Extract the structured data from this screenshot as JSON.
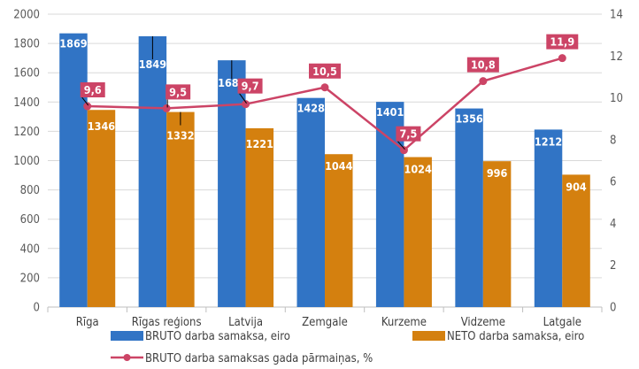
{
  "chart_data": {
    "type": "bar",
    "title": "",
    "xlabel": "",
    "ylabel": "",
    "y2label": "",
    "categories": [
      "Rīga",
      "Rīgas reģions",
      "Latvija",
      "Zemgale",
      "Kurzeme",
      "Vidzeme",
      "Latgale"
    ],
    "ylim": [
      0,
      2000
    ],
    "y2lim": [
      0,
      14
    ],
    "yticks": [
      "0",
      "200",
      "400",
      "600",
      "800",
      "1000",
      "1200",
      "1400",
      "1600",
      "1800",
      "2000"
    ],
    "y2ticks": [
      "0",
      "2",
      "4",
      "6",
      "8",
      "10",
      "12",
      "14"
    ],
    "grid": true,
    "legend_position": "bottom",
    "series": [
      {
        "name": "BRUTO darba samaksa, eiro",
        "type": "bar",
        "axis": "left",
        "color": "#3174C5",
        "values": [
          1869,
          1849,
          1685,
          1428,
          1401,
          1356,
          1212
        ],
        "labels": [
          "1869",
          "1849",
          "1685",
          "1428",
          "1401",
          "1356",
          "1212"
        ]
      },
      {
        "name": "NETO darba samaksa, eiro",
        "type": "bar",
        "axis": "left",
        "color": "#D4800F",
        "values": [
          1346,
          1332,
          1221,
          1044,
          1024,
          996,
          904
        ],
        "labels": [
          "1346",
          "1332",
          "1221",
          "1044",
          "1024",
          "996",
          "904"
        ]
      },
      {
        "name": "BRUTO darba samaksas gada pārmaiņas, %",
        "type": "line",
        "axis": "right",
        "color": "#CC4466",
        "values": [
          9.6,
          9.5,
          9.7,
          10.5,
          7.5,
          10.8,
          11.9
        ],
        "labels": [
          "9,6",
          "9,5",
          "9,7",
          "10,5",
          "7,5",
          "10,8",
          "11,9"
        ]
      }
    ]
  }
}
